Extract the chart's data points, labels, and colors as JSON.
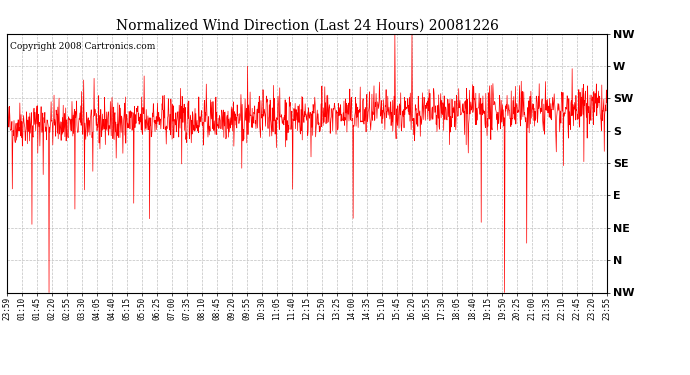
{
  "title": "Normalized Wind Direction (Last 24 Hours) 20081226",
  "copyright": "Copyright 2008 Cartronics.com",
  "bg_color": "#ffffff",
  "plot_bg_color": "#ffffff",
  "grid_color": "#b0b0b0",
  "line_color": "#ff0000",
  "ytick_labels": [
    "NW",
    "W",
    "SW",
    "S",
    "SE",
    "E",
    "NE",
    "N",
    "NW"
  ],
  "ytick_values": [
    8,
    7,
    6,
    5,
    4,
    3,
    2,
    1,
    0
  ],
  "xtick_labels": [
    "23:59",
    "01:10",
    "01:45",
    "02:20",
    "02:55",
    "03:30",
    "04:05",
    "04:40",
    "05:15",
    "05:50",
    "06:25",
    "07:00",
    "07:35",
    "08:10",
    "08:45",
    "09:20",
    "09:55",
    "10:30",
    "11:05",
    "11:40",
    "12:15",
    "12:50",
    "13:25",
    "14:00",
    "14:35",
    "15:10",
    "15:45",
    "16:20",
    "16:55",
    "17:30",
    "18:05",
    "18:40",
    "19:15",
    "19:50",
    "20:25",
    "21:00",
    "21:35",
    "22:10",
    "22:45",
    "23:20",
    "23:55"
  ],
  "ylim": [
    0,
    8
  ],
  "seed": 42,
  "n_points": 1440
}
